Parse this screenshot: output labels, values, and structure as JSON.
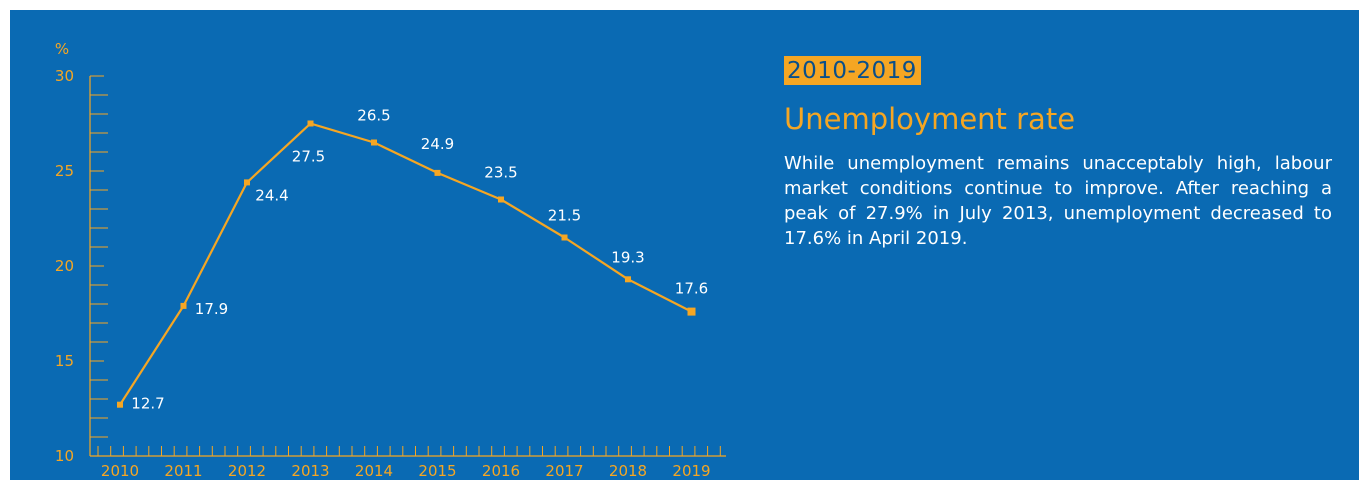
{
  "side": {
    "period": "2010-2019",
    "title": "Unemployment rate",
    "description": "While unemployment remains unacceptably high, labour market conditions continue to improve. After reaching a peak of 27.9% in July 2013, unemployment decreased to 17.6% in April 2019."
  },
  "chart_data": {
    "type": "line",
    "ylabel": "%",
    "ylim": [
      10,
      30
    ],
    "ytick_labels": [
      "10",
      "15",
      "20",
      "25",
      "30"
    ],
    "categories": [
      "2010",
      "2011",
      "2012",
      "2013",
      "2014",
      "2015",
      "2016",
      "2017",
      "2018",
      "2019"
    ],
    "values": [
      12.7,
      17.9,
      24.4,
      27.5,
      26.5,
      24.9,
      23.5,
      21.5,
      19.3,
      17.6
    ],
    "data_labels": [
      "12.7",
      "17.9",
      "24.4",
      "27.5",
      "26.5",
      "24.9",
      "23.5",
      "21.5",
      "19.3",
      "17.6"
    ],
    "grid": false,
    "colors": {
      "background": "#0a6ab3",
      "line": "#f5a623",
      "labels": "#ffffff"
    }
  }
}
